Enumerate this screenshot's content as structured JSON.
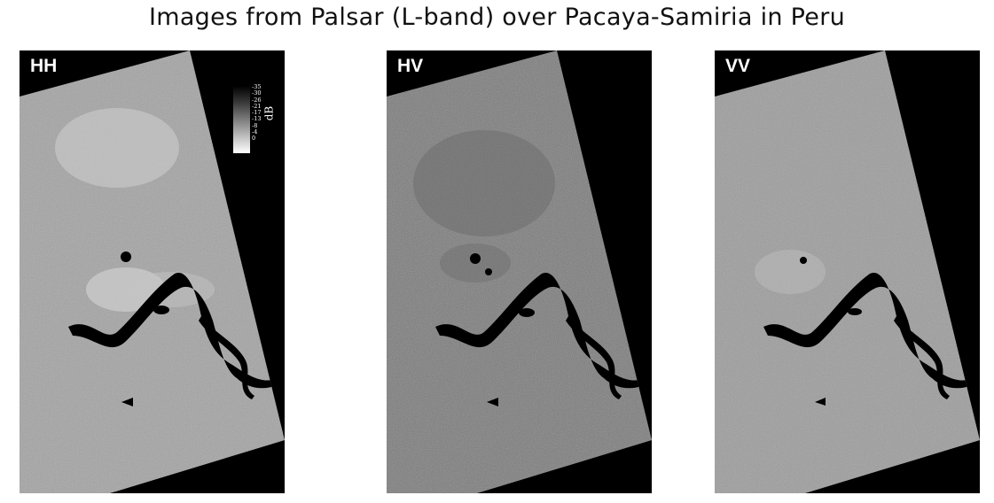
{
  "title": "Images from Palsar (L-band) over Pacaya-Samiria in Peru",
  "panels": [
    {
      "label": "HH",
      "tone": "#a4a4a4",
      "texture": "hh"
    },
    {
      "label": "HV",
      "tone": "#7c7c7c",
      "texture": "hv"
    },
    {
      "label": "VV",
      "tone": "#9d9d9d",
      "texture": "vv"
    }
  ],
  "colorbar": {
    "unit": "dB",
    "ticks": [
      "-35",
      "-30",
      "-26",
      "-21",
      "-17",
      "-13",
      "-8",
      "-4",
      "0"
    ]
  },
  "colors": {
    "background": "#ffffff",
    "frame": "#000000",
    "river": "#000000"
  }
}
